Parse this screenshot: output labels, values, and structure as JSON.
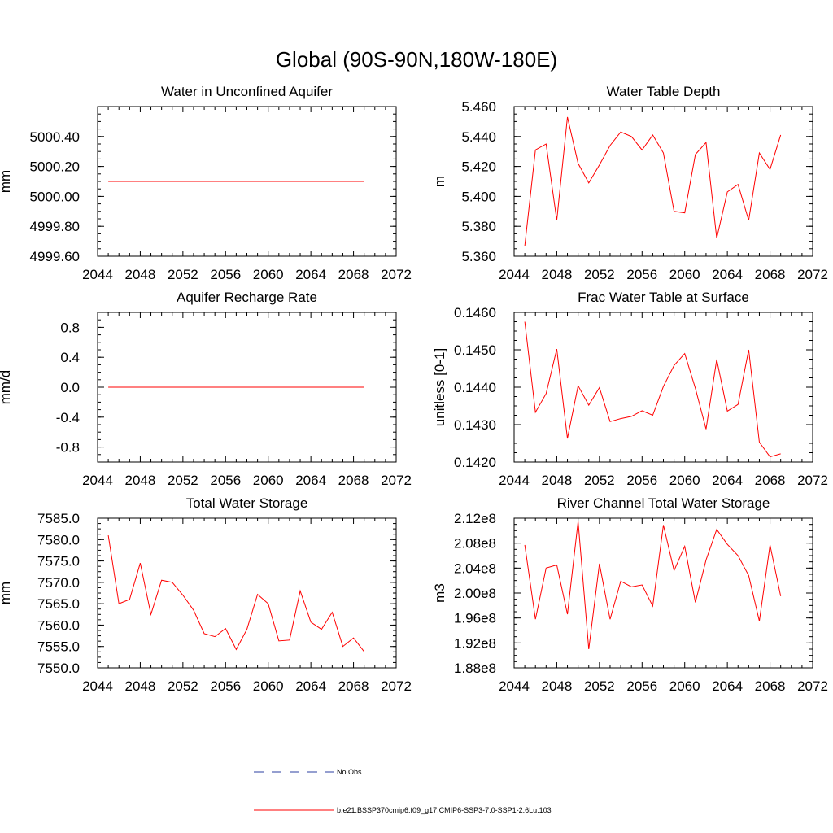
{
  "figure_title": "Global (90S-90N,180W-180E)",
  "legend": {
    "obs_label": "No Obs",
    "obs_color": "#2b3fa0",
    "model_label": "b.e21.BSSP370cmip6.f09_g17.CMIP6-SSP3-7.0-SSP1-2.6Lu.103",
    "model_color": "#ff0000"
  },
  "chart_data": [
    {
      "type": "line",
      "title": "Water in Unconfined Aquifer",
      "ylabel": "mm",
      "xlim": [
        2044,
        2072
      ],
      "xticks": [
        "2044",
        "2048",
        "2052",
        "2056",
        "2060",
        "2064",
        "2068",
        "2072"
      ],
      "ylim": [
        4999.6,
        5000.6
      ],
      "yticks": [
        4999.6,
        4999.8,
        5000.0,
        5000.2,
        5000.4
      ],
      "ytick_labels": [
        "4999.60",
        "4999.80",
        "5000.00",
        "5000.20",
        "5000.40"
      ],
      "x": [
        2045,
        2046,
        2047,
        2048,
        2049,
        2050,
        2051,
        2052,
        2053,
        2054,
        2055,
        2056,
        2057,
        2058,
        2059,
        2060,
        2061,
        2062,
        2063,
        2064,
        2065,
        2066,
        2067,
        2068,
        2069
      ],
      "y": [
        5000.1,
        5000.1,
        5000.1,
        5000.1,
        5000.1,
        5000.1,
        5000.1,
        5000.1,
        5000.1,
        5000.1,
        5000.1,
        5000.1,
        5000.1,
        5000.1,
        5000.1,
        5000.1,
        5000.1,
        5000.1,
        5000.1,
        5000.1,
        5000.1,
        5000.1,
        5000.1,
        5000.1,
        5000.1
      ]
    },
    {
      "type": "line",
      "title": "Water Table Depth",
      "ylabel": "m",
      "xlim": [
        2044,
        2072
      ],
      "xticks": [
        "2044",
        "2048",
        "2052",
        "2056",
        "2060",
        "2064",
        "2068",
        "2072"
      ],
      "ylim": [
        5.36,
        5.46
      ],
      "yticks": [
        5.36,
        5.38,
        5.4,
        5.42,
        5.44,
        5.46
      ],
      "ytick_labels": [
        "5.360",
        "5.380",
        "5.400",
        "5.420",
        "5.440",
        "5.460"
      ],
      "x": [
        2045,
        2046,
        2047,
        2048,
        2049,
        2050,
        2051,
        2052,
        2053,
        2054,
        2055,
        2056,
        2057,
        2058,
        2059,
        2060,
        2061,
        2062,
        2063,
        2064,
        2065,
        2066,
        2067,
        2068,
        2069
      ],
      "y": [
        5.367,
        5.431,
        5.435,
        5.384,
        5.453,
        5.422,
        5.409,
        5.421,
        5.434,
        5.443,
        5.44,
        5.431,
        5.441,
        5.429,
        5.39,
        5.389,
        5.428,
        5.436,
        5.372,
        5.403,
        5.408,
        5.384,
        5.429,
        5.418,
        5.441
      ]
    },
    {
      "type": "line",
      "title": "Aquifer Recharge Rate",
      "ylabel": "mm/d",
      "xlim": [
        2044,
        2072
      ],
      "xticks": [
        "2044",
        "2048",
        "2052",
        "2056",
        "2060",
        "2064",
        "2068",
        "2072"
      ],
      "ylim": [
        -1.0,
        1.0
      ],
      "yticks": [
        -0.8,
        -0.4,
        0.0,
        0.4,
        0.8
      ],
      "ytick_labels": [
        "-0.8",
        "-0.4",
        "0.0",
        "0.4",
        "0.8"
      ],
      "x": [
        2045,
        2046,
        2047,
        2048,
        2049,
        2050,
        2051,
        2052,
        2053,
        2054,
        2055,
        2056,
        2057,
        2058,
        2059,
        2060,
        2061,
        2062,
        2063,
        2064,
        2065,
        2066,
        2067,
        2068,
        2069
      ],
      "y": [
        0,
        0,
        0,
        0,
        0,
        0,
        0,
        0,
        0,
        0,
        0,
        0,
        0,
        0,
        0,
        0,
        0,
        0,
        0,
        0,
        0,
        0,
        0,
        0,
        0
      ]
    },
    {
      "type": "line",
      "title": "Frac Water Table at Surface",
      "ylabel": "unitless [0-1]",
      "xlim": [
        2044,
        2072
      ],
      "xticks": [
        "2044",
        "2048",
        "2052",
        "2056",
        "2060",
        "2064",
        "2068",
        "2072"
      ],
      "ylim": [
        0.142,
        0.146
      ],
      "yticks": [
        0.142,
        0.143,
        0.144,
        0.145,
        0.146
      ],
      "ytick_labels": [
        "0.1420",
        "0.1430",
        "0.1440",
        "0.1450",
        "0.1460"
      ],
      "x": [
        2045,
        2046,
        2047,
        2048,
        2049,
        2050,
        2051,
        2052,
        2053,
        2054,
        2055,
        2056,
        2057,
        2058,
        2059,
        2060,
        2061,
        2062,
        2063,
        2064,
        2065,
        2066,
        2067,
        2068,
        2069
      ],
      "y": [
        0.14575,
        0.14333,
        0.14383,
        0.14502,
        0.14263,
        0.14404,
        0.14352,
        0.14399,
        0.14308,
        0.14316,
        0.14322,
        0.14337,
        0.14325,
        0.14402,
        0.14458,
        0.1449,
        0.14397,
        0.14288,
        0.14474,
        0.14336,
        0.14354,
        0.145,
        0.14253,
        0.14214,
        0.14222
      ]
    },
    {
      "type": "line",
      "title": "Total Water Storage",
      "ylabel": "mm",
      "xlim": [
        2044,
        2072
      ],
      "xticks": [
        "2044",
        "2048",
        "2052",
        "2056",
        "2060",
        "2064",
        "2068",
        "2072"
      ],
      "ylim": [
        7550.0,
        7585.0
      ],
      "yticks": [
        7550,
        7555,
        7560,
        7565,
        7570,
        7575,
        7580,
        7585
      ],
      "ytick_labels": [
        "7550.0",
        "7555.0",
        "7560.0",
        "7565.0",
        "7570.0",
        "7575.0",
        "7580.0",
        "7585.0"
      ],
      "x": [
        2045,
        2046,
        2047,
        2048,
        2049,
        2050,
        2051,
        2052,
        2053,
        2054,
        2055,
        2056,
        2057,
        2058,
        2059,
        2060,
        2061,
        2062,
        2063,
        2064,
        2065,
        2066,
        2067,
        2068,
        2069
      ],
      "y": [
        7581.0,
        7565.0,
        7566.0,
        7574.5,
        7562.5,
        7570.5,
        7570.0,
        7567.0,
        7563.5,
        7558.0,
        7557.3,
        7559.2,
        7554.3,
        7559.0,
        7567.2,
        7565.0,
        7556.3,
        7556.5,
        7568.0,
        7560.7,
        7559.0,
        7563.0,
        7555.0,
        7557.0,
        7553.8
      ]
    },
    {
      "type": "line",
      "title": "River Channel Total Water Storage",
      "ylabel": "m3",
      "xlim": [
        2044,
        2072
      ],
      "xticks": [
        "2044",
        "2048",
        "2052",
        "2056",
        "2060",
        "2064",
        "2068",
        "2072"
      ],
      "ylim": [
        188000000.0,
        212000000.0
      ],
      "yticks": [
        188000000.0,
        192000000.0,
        196000000.0,
        200000000.0,
        204000000.0,
        208000000.0,
        212000000.0
      ],
      "ytick_labels": [
        "1.88e8",
        "1.92e8",
        "1.96e8",
        "2.00e8",
        "2.04e8",
        "2.08e8",
        "2.12e8"
      ],
      "x": [
        2045,
        2046,
        2047,
        2048,
        2049,
        2050,
        2051,
        2052,
        2053,
        2054,
        2055,
        2056,
        2057,
        2058,
        2059,
        2060,
        2061,
        2062,
        2063,
        2064,
        2065,
        2066,
        2067,
        2068,
        2069
      ],
      "y": [
        207700000.0,
        195800000.0,
        204000000.0,
        204500000.0,
        196600000.0,
        211500000.0,
        191000000.0,
        204700000.0,
        195800000.0,
        201900000.0,
        201000000.0,
        201300000.0,
        197900000.0,
        210900000.0,
        203600000.0,
        207500000.0,
        198500000.0,
        205300000.0,
        210200000.0,
        207800000.0,
        206000000.0,
        202800000.0,
        195500000.0,
        207700000.0,
        199500000.0
      ]
    }
  ]
}
